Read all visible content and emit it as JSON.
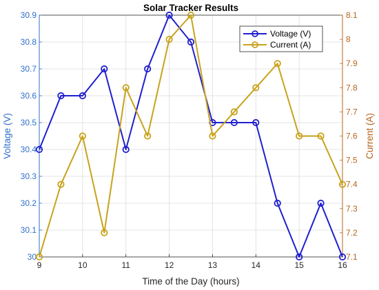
{
  "chart_data": {
    "type": "line",
    "title": "Solar Tracker Results",
    "xlabel": "Time of the Day (hours)",
    "ylabel_left": "Voltage (V)",
    "ylabel_right": "Current (A)",
    "x": [
      9,
      9.5,
      10,
      10.5,
      11,
      11.5,
      12,
      12.5,
      13,
      13.5,
      14,
      14.5,
      15,
      15.5,
      16
    ],
    "xlim": [
      9,
      16
    ],
    "ylim_left": [
      30,
      30.9
    ],
    "ylim_right": [
      7.1,
      8.1
    ],
    "x_ticks": [
      "9",
      "10",
      "11",
      "12",
      "13",
      "14",
      "15",
      "16"
    ],
    "y_left_ticks": [
      "30",
      "30.1",
      "30.2",
      "30.3",
      "30.4",
      "30.5",
      "30.6",
      "30.7",
      "30.8",
      "30.9"
    ],
    "y_right_ticks": [
      "7.1",
      "7.2",
      "7.3",
      "7.4",
      "7.5",
      "7.6",
      "7.7",
      "7.8",
      "7.9",
      "8",
      "8.1"
    ],
    "grid": true,
    "legend_position": "top-right",
    "series": [
      {
        "name": "Voltage (V)",
        "axis": "left",
        "color": "#1f1fcf",
        "marker": "circle",
        "values": [
          30.4,
          30.6,
          30.6,
          30.7,
          30.4,
          30.7,
          30.9,
          30.8,
          30.5,
          30.5,
          30.5,
          30.2,
          30.0,
          30.2,
          30.0
        ]
      },
      {
        "name": "Current (A)",
        "axis": "right",
        "color": "#c8a21a",
        "marker": "circle",
        "values": [
          7.1,
          7.4,
          7.6,
          7.2,
          7.8,
          7.6,
          8.0,
          8.1,
          7.6,
          7.7,
          7.8,
          7.9,
          7.6,
          7.6,
          7.4
        ]
      }
    ],
    "left_axis_color": "#2f6fc9",
    "right_axis_color": "#b5651d"
  }
}
